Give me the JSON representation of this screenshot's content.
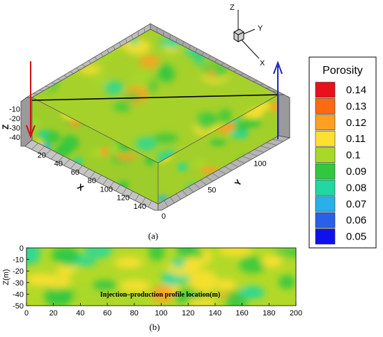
{
  "chart_data": [
    {
      "type": "heatmap",
      "panel_label": "(a)",
      "view": "3d-contour-block",
      "orientation_axes": [
        "Z",
        "Y",
        "X"
      ],
      "x_ticks": [
        "20",
        "40",
        "60",
        "80",
        "100",
        "120",
        "140"
      ],
      "xlabel": "X",
      "y_ticks": [
        "0",
        "50",
        "100"
      ],
      "ylabel": "Y",
      "z_ticks": [
        "-10",
        "-20",
        "-30",
        "-40"
      ],
      "zlabel": "Z",
      "xlim": [
        0,
        150
      ],
      "ylim": [
        0,
        130
      ],
      "zlim": [
        -45,
        0
      ],
      "wells": [
        {
          "role": "injection",
          "color": "#cc1111"
        },
        {
          "role": "production",
          "color": "#2222bb"
        }
      ],
      "colorbar": {
        "title": "Porosity",
        "levels": [
          0.14,
          0.13,
          0.12,
          0.11,
          0.1,
          0.09,
          0.08,
          0.07,
          0.06,
          0.05
        ],
        "level_labels": [
          "0.14",
          "0.13",
          "0.12",
          "0.11",
          "0.1",
          "0.09",
          "0.08",
          "0.07",
          "0.06",
          "0.05"
        ],
        "colors": [
          "#e8101a",
          "#ff6a10",
          "#ffa020",
          "#ffe030",
          "#a8d828",
          "#30c840",
          "#20d8a0",
          "#28b0e8",
          "#2860e8",
          "#1010ee"
        ]
      }
    },
    {
      "type": "heatmap",
      "panel_label": "(b)",
      "ylabel": "Z(m)",
      "annotation": "Injection–production profile location(m)",
      "x_ticks": [
        "0",
        "20",
        "40",
        "60",
        "80",
        "100",
        "120",
        "140",
        "160",
        "180",
        "200"
      ],
      "y_ticks": [
        "0",
        "-10",
        "-20",
        "-30",
        "-40",
        "-50"
      ],
      "xlim": [
        0,
        200
      ],
      "ylim": [
        -50,
        0
      ],
      "grid": false
    }
  ]
}
